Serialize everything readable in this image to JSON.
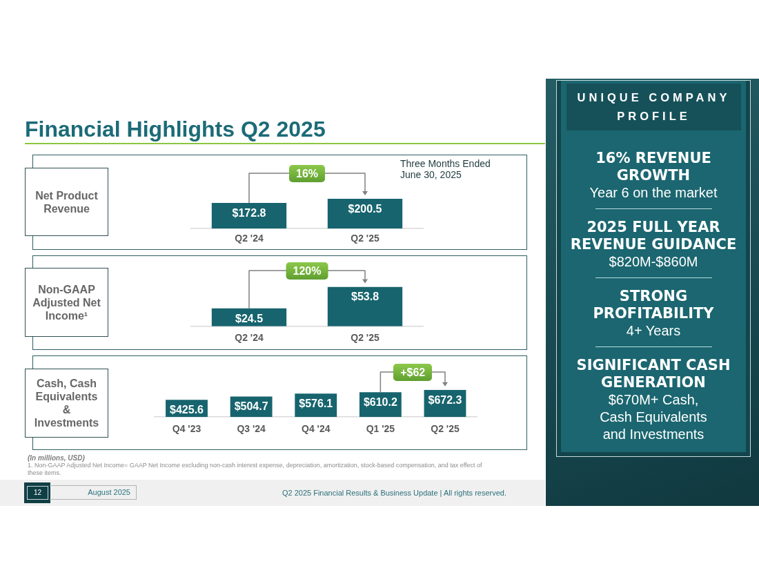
{
  "chart_data": [
    {
      "type": "bar",
      "title": "Financial Highlights Q2 2025",
      "ylabel": "Net Product Revenue",
      "categories": [
        "Q2 '24",
        "Q2 '25"
      ],
      "values": [
        172.8,
        200.5
      ],
      "value_labels": [
        "$172.8",
        "$200.5"
      ],
      "color": "#17646e",
      "tick_labels": "x",
      "annotations": [
        "16%",
        "Three Months Ended June 30, 2025"
      ]
    },
    {
      "type": "bar",
      "ylabel": "Non-GAAP Adjusted Net Income¹",
      "categories": [
        "Q2 '24",
        "Q2 '25"
      ],
      "values": [
        24.5,
        53.8
      ],
      "value_labels": [
        "$24.5",
        "$53.8"
      ],
      "color": "#17646e",
      "tick_labels": "x",
      "annotations": [
        "120%"
      ]
    },
    {
      "type": "bar",
      "ylabel": "Cash, Cash Equivalents & Investments",
      "categories": [
        "Q4 '23",
        "Q3 '24",
        "Q4 '24",
        "Q1 '25",
        "Q2 '25"
      ],
      "values": [
        425.6,
        504.7,
        576.1,
        610.2,
        672.3
      ],
      "value_labels": [
        "$425.6",
        "$504.7",
        "$576.1",
        "$610.2",
        "$672.3"
      ],
      "color": "#17646e",
      "tick_labels": "x",
      "annotations": [
        "+$62",
        "(In millions, USD)",
        "1. Non-GAAP Adjusted Net Income= GAAP Net Income excluding non-cash interest expense, depreciation, amortization, stock-based compensation, and tax effect of these items.",
        "12",
        "August 2025",
        "Q2 2025 Financial Results & Business Update | All rights reserved."
      ]
    },
    {
      "type": "other",
      "title": "UNIQUE COMPANY PROFILE",
      "annotations": [
        "16% REVENUE GROWTH",
        "Year 6 on the market",
        "2025 FULL YEAR REVENUE GUIDANCE",
        "$820M-$860M",
        "STRONG PROFITABILITY",
        "4+ Years",
        "SIGNIFICANT CASH GENERATION",
        "$670M+ Cash, Cash Equivalents and Investments"
      ]
    }
  ]
}
